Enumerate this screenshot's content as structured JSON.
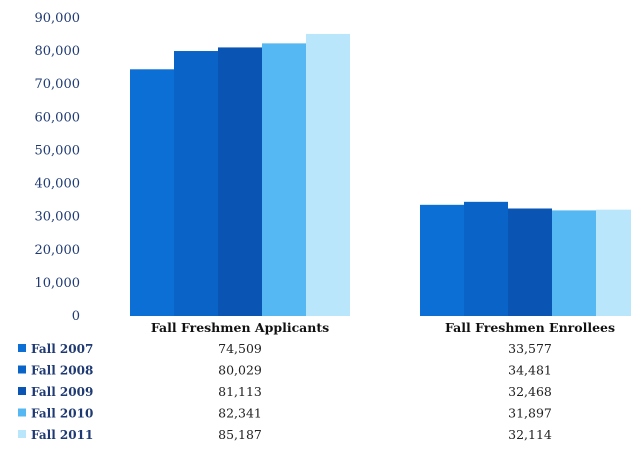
{
  "chart_data": {
    "type": "bar",
    "categories": [
      "Fall Freshmen Applicants",
      "Fall Freshmen Enrollees"
    ],
    "series": [
      {
        "name": "Fall 2007",
        "values": [
          74509,
          33577
        ],
        "labels": [
          "74,509",
          "33,577"
        ],
        "color": "#0b6fd6"
      },
      {
        "name": "Fall 2008",
        "values": [
          80029,
          34481
        ],
        "labels": [
          "80,029",
          "34,481"
        ],
        "color": "#0a64c8"
      },
      {
        "name": "Fall 2009",
        "values": [
          81113,
          32468
        ],
        "labels": [
          "81,113",
          "32,468"
        ],
        "color": "#0a55b4"
      },
      {
        "name": "Fall 2010",
        "values": [
          82341,
          31897
        ],
        "labels": [
          "82,341",
          "31,897"
        ],
        "color": "#56b8f2"
      },
      {
        "name": "Fall 2011",
        "values": [
          85187,
          32114
        ],
        "labels": [
          "85,187",
          "32,114"
        ],
        "color": "#b9e6fb"
      }
    ],
    "ylim": [
      0,
      90000
    ],
    "yticks": [
      0,
      10000,
      20000,
      30000,
      40000,
      50000,
      60000,
      70000,
      80000,
      90000
    ],
    "ytick_labels": [
      "0",
      "10,000",
      "20,000",
      "30,000",
      "40,000",
      "50,000",
      "60,000",
      "70,000",
      "80,000",
      "90,000"
    ],
    "grid": false,
    "legend": "data-table-left",
    "title": "",
    "xlabel": "",
    "ylabel": ""
  }
}
